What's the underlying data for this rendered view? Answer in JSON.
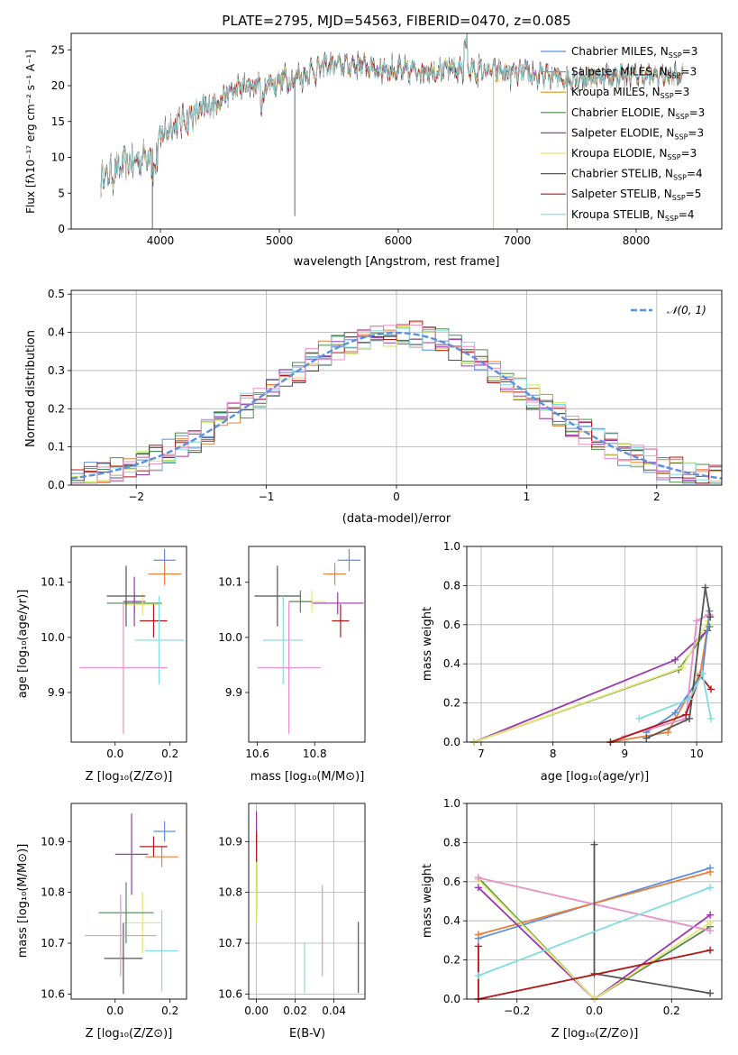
{
  "colors": [
    "#5b8fe0",
    "#e87f3a",
    "#e0901a",
    "#4f8a4f",
    "#9a38b0",
    "#e8e870",
    "#555555",
    "#b01818",
    "#80dce0"
  ],
  "colors_extra": {
    "pink": "#e890c8",
    "lime": "#c8e860",
    "olive": "#7a8a2a",
    "grid": "#b0b0b0",
    "gauss": "#5b8fe0"
  },
  "chart_data": [
    {
      "type": "line",
      "title": "PLATE=2795, MJD=54563, FIBERID=0470, z=0.085",
      "xlabel": "wavelength [Angstrom, rest frame]",
      "ylabel": "Flux [fλ10⁻¹⁷ erg cm⁻² s⁻¹ A⁻¹]",
      "xlim": [
        3250,
        8720
      ],
      "ylim": [
        0,
        27.3
      ],
      "xticks": [
        4000,
        5000,
        6000,
        7000,
        8000
      ],
      "yticks": [
        0,
        5,
        10,
        15,
        20,
        25
      ],
      "grid": false,
      "legend": "right",
      "series": [
        {
          "name": "Chabrier MILES, N",
          "sub": "SSP",
          "suffix": "=3"
        },
        {
          "name": "Salpeter MILES, N",
          "sub": "SSP",
          "suffix": "=3"
        },
        {
          "name": "Kroupa MILES, N",
          "sub": "SSP",
          "suffix": "=3"
        },
        {
          "name": "Chabrier ELODIE, N",
          "sub": "SSP",
          "suffix": "=3"
        },
        {
          "name": "Salpeter ELODIE, N",
          "sub": "SSP",
          "suffix": "=3"
        },
        {
          "name": "Kroupa ELODIE, N",
          "sub": "SSP",
          "suffix": "=3"
        },
        {
          "name": "Chabrier STELIB, N",
          "sub": "SSP",
          "suffix": "=4"
        },
        {
          "name": "Salpeter STELIB, N",
          "sub": "SSP",
          "suffix": "=5"
        },
        {
          "name": "Kroupa STELIB, N",
          "sub": "SSP",
          "suffix": "=4"
        }
      ],
      "continuum": {
        "x": [
          3500,
          3600,
          3700,
          3800,
          3900,
          4000,
          4100,
          4200,
          4300,
          4400,
          4500,
          4700,
          5000,
          5200,
          5400,
          5700,
          6000,
          6300,
          6600,
          6800,
          7000,
          7200,
          7400,
          7700,
          8000,
          8400
        ],
        "y": [
          7.2,
          8.0,
          9.0,
          9.5,
          10.5,
          12.8,
          14.5,
          15.3,
          16.0,
          17.0,
          18.3,
          19.8,
          20.5,
          21.5,
          22.8,
          22.8,
          22.0,
          22.2,
          22.3,
          22.0,
          21.7,
          21.5,
          21.0,
          21.3,
          21.5,
          21.3
        ]
      },
      "dips": [
        {
          "x": 3933,
          "y": 0
        },
        {
          "x": 5130,
          "y": 1.8
        },
        {
          "x": 6800,
          "y": 0
        },
        {
          "x": 7420,
          "y": 0
        }
      ]
    },
    {
      "type": "histogram",
      "xlabel": "(data-model)/error",
      "ylabel": "Normed distribution",
      "xlim": [
        -2.5,
        2.5
      ],
      "ylim": [
        0,
        0.51
      ],
      "xticks": [
        -2,
        -1,
        0,
        1,
        2
      ],
      "xtick_labels": [
        "−2",
        "−1",
        "0",
        "1",
        "2"
      ],
      "yticks": [
        0.0,
        0.1,
        0.2,
        0.3,
        0.4,
        0.5
      ],
      "grid": true,
      "legend": "top-right",
      "gaussian_label": "𝒩(0, 1)",
      "bin_width": 0.1,
      "bin_start": -2.5
    },
    {
      "type": "scatter",
      "xlabel": "Z [log₁₀(Z/Z⊙)]",
      "ylabel": "age  [log₁₀(age/yr)]",
      "xlim": [
        -0.16,
        0.26
      ],
      "ylim": [
        9.81,
        10.165
      ],
      "xticks": [
        0.0,
        0.2
      ],
      "yticks": [
        9.9,
        10.0,
        10.1
      ],
      "points": [
        {
          "x": 0.18,
          "y": 10.14,
          "xerr": 0.04,
          "yerr": 0.02,
          "c": 0
        },
        {
          "x": 0.18,
          "y": 10.115,
          "xerr": 0.06,
          "yerr": 0.02,
          "c": 1
        },
        {
          "x": 0.07,
          "y": 10.062,
          "xerr": 0.1,
          "yerr": 0.02,
          "c": 3
        },
        {
          "x": 0.07,
          "y": 10.065,
          "xerr": 0.04,
          "yerr": 0.045,
          "c": 4
        },
        {
          "x": 0.1,
          "y": 10.06,
          "xerr": 0.07,
          "yerr": 0.02,
          "c": 5
        },
        {
          "x": 0.04,
          "y": 10.075,
          "xerr": 0.07,
          "yerr": 0.055,
          "c": 6
        },
        {
          "x": 0.14,
          "y": 10.03,
          "xerr": 0.05,
          "yerr": 0.03,
          "c": 7
        },
        {
          "x": 0.16,
          "y": 9.995,
          "xerr": 0.09,
          "yerr": 0.08,
          "c": 8
        },
        {
          "x": 0.03,
          "y": 9.945,
          "xerr": 0.16,
          "yerr": 0.12,
          "c": "pink"
        }
      ]
    },
    {
      "type": "scatter",
      "xlabel": "mass [log₁₀(M/M⊙)]",
      "ylabel": "",
      "xlim": [
        10.57,
        10.975
      ],
      "ylim": [
        9.81,
        10.165
      ],
      "xticks": [
        10.6,
        10.8
      ],
      "yticks": [
        9.9,
        10.0,
        10.1
      ],
      "points": [
        {
          "x": 10.92,
          "y": 10.14,
          "xerr": 0.04,
          "yerr": 0.02,
          "c": 0
        },
        {
          "x": 10.87,
          "y": 10.115,
          "xerr": 0.04,
          "yerr": 0.02,
          "c": 1
        },
        {
          "x": 10.88,
          "y": 10.062,
          "xerr": 0.09,
          "yerr": 0.02,
          "c": 4
        },
        {
          "x": 10.79,
          "y": 10.065,
          "xerr": 0.05,
          "yerr": 0.02,
          "c": 5
        },
        {
          "x": 10.75,
          "y": 10.065,
          "xerr": 0.04,
          "yerr": 0.02,
          "c": 3
        },
        {
          "x": 10.67,
          "y": 10.075,
          "xerr": 0.08,
          "yerr": 0.055,
          "c": 6
        },
        {
          "x": 10.89,
          "y": 10.03,
          "xerr": 0.03,
          "yerr": 0.03,
          "c": 7
        },
        {
          "x": 10.69,
          "y": 9.995,
          "xerr": 0.07,
          "yerr": 0.08,
          "c": 8
        },
        {
          "x": 10.71,
          "y": 9.945,
          "xerr": 0.11,
          "yerr": 0.12,
          "c": "pink"
        }
      ]
    },
    {
      "type": "line",
      "xlabel": "age  [log₁₀(age/yr)]",
      "ylabel": "mass weight",
      "xlim": [
        6.8,
        10.35
      ],
      "ylim": [
        0,
        1.0
      ],
      "xticks": [
        7,
        8,
        9,
        10
      ],
      "yticks": [
        0.0,
        0.2,
        0.4,
        0.6,
        0.8,
        1.0
      ],
      "grid": true,
      "series": [
        {
          "x": [
            6.9,
            9.75,
            10.18
          ],
          "y": [
            0.0,
            0.37,
            0.59
          ],
          "c": 3
        },
        {
          "x": [
            6.9,
            9.7,
            10.15
          ],
          "y": [
            0.0,
            0.42,
            0.57
          ],
          "c": 4
        },
        {
          "x": [
            6.9,
            9.8,
            10.16
          ],
          "y": [
            0.0,
            0.38,
            0.62
          ],
          "c": 5
        },
        {
          "x": [
            8.8,
            9.6,
            10.05,
            10.18
          ],
          "y": [
            0.0,
            0.05,
            0.35,
            0.65
          ],
          "c": 1
        },
        {
          "x": [
            9.3,
            9.7,
            10.08,
            10.18
          ],
          "y": [
            0.05,
            0.15,
            0.35,
            0.67
          ],
          "c": 0
        },
        {
          "x": [
            9.0,
            9.85,
            10.0,
            10.16
          ],
          "y": [
            0.03,
            0.12,
            0.62,
            0.65
          ],
          "c": "pink"
        },
        {
          "x": [
            9.3,
            9.9,
            10.12,
            10.19
          ],
          "y": [
            0.02,
            0.12,
            0.79,
            0.64
          ],
          "c": 6
        },
        {
          "x": [
            8.8,
            9.85,
            10.05,
            10.2
          ],
          "y": [
            0.0,
            0.14,
            0.34,
            0.27
          ],
          "c": 7
        },
        {
          "x": [
            9.2,
            9.9,
            10.08,
            10.2
          ],
          "y": [
            0.12,
            0.22,
            0.35,
            0.12
          ],
          "c": 8
        }
      ]
    },
    {
      "type": "scatter",
      "xlabel": "Z [log₁₀(Z/Z⊙)]",
      "ylabel": "mass [log₁₀(M/M⊙)]",
      "xlim": [
        -0.16,
        0.26
      ],
      "ylim": [
        10.59,
        10.975
      ],
      "xticks": [
        0.0,
        0.2
      ],
      "yticks": [
        10.6,
        10.7,
        10.8,
        10.9
      ],
      "points": [
        {
          "x": 0.18,
          "y": 10.92,
          "xerr": 0.04,
          "yerr": 0.02,
          "c": 0
        },
        {
          "x": 0.17,
          "y": 10.87,
          "xerr": 0.06,
          "yerr": 0.02,
          "c": 1
        },
        {
          "x": 0.14,
          "y": 10.89,
          "xerr": 0.05,
          "yerr": 0.02,
          "c": 7
        },
        {
          "x": 0.06,
          "y": 10.875,
          "xerr": 0.06,
          "yerr": 0.08,
          "c": 4
        },
        {
          "x": 0.1,
          "y": 10.74,
          "xerr": 0.07,
          "yerr": 0.06,
          "c": 5
        },
        {
          "x": 0.04,
          "y": 10.76,
          "xerr": 0.1,
          "yerr": 0.06,
          "c": 3
        },
        {
          "x": 0.03,
          "y": 10.67,
          "xerr": 0.07,
          "yerr": 0.07,
          "c": 6
        },
        {
          "x": 0.02,
          "y": 10.715,
          "xerr": 0.13,
          "yerr": 0.08,
          "c": "pink"
        },
        {
          "x": 0.17,
          "y": 10.685,
          "xerr": 0.06,
          "yerr": 0.08,
          "c": 8
        }
      ]
    },
    {
      "type": "scatter",
      "xlabel": "E(B-V)",
      "ylabel": "",
      "xlim": [
        -0.004,
        0.056
      ],
      "ylim": [
        10.59,
        10.975
      ],
      "xticks": [
        0.0,
        0.02,
        0.04
      ],
      "xtick_labels": [
        "0.00",
        "0.02",
        "0.04"
      ],
      "yticks": [
        10.6,
        10.7,
        10.8,
        10.9
      ],
      "grid": true,
      "points": [
        {
          "x": 0.0,
          "y": 10.92,
          "xerr": 0,
          "yerr": 0.03,
          "c": 0
        },
        {
          "x": 0.0,
          "y": 10.88,
          "xerr": 0,
          "yerr": 0.08,
          "c": 4
        },
        {
          "x": 0.0,
          "y": 10.84,
          "xerr": 0,
          "yerr": 0.08,
          "c": 7
        },
        {
          "x": 0.0,
          "y": 10.8,
          "xerr": 0,
          "yerr": 0.06,
          "c": "lime"
        },
        {
          "x": 0.0248,
          "y": 10.652,
          "xerr": 0,
          "yerr": 0.05,
          "c": 8
        },
        {
          "x": 0.034,
          "y": 10.725,
          "xerr": 0,
          "yerr": 0.09,
          "c": "pink"
        },
        {
          "x": 0.0526,
          "y": 10.672,
          "xerr": 0,
          "yerr": 0.07,
          "c": 6
        }
      ]
    },
    {
      "type": "line",
      "xlabel": "Z [log₁₀(Z/Z⊙)]",
      "ylabel": "mass weight",
      "xlim": [
        -0.33,
        0.33
      ],
      "ylim": [
        0,
        1.0
      ],
      "xticks": [
        -0.2,
        0.0,
        0.2
      ],
      "xtick_labels": [
        "−0.2",
        "0.0",
        "0.2"
      ],
      "yticks": [
        0.0,
        0.2,
        0.4,
        0.6,
        0.8,
        1.0
      ],
      "grid": true,
      "series": [
        {
          "x": [
            -0.3,
            0.3
          ],
          "y": [
            0.31,
            0.67
          ],
          "c": 0
        },
        {
          "x": [
            -0.3,
            0.3
          ],
          "y": [
            0.33,
            0.65
          ],
          "c": 1
        },
        {
          "x": [
            -0.3,
            0.0,
            0.3
          ],
          "y": [
            0.62,
            0.0,
            0.37
          ],
          "c": 3
        },
        {
          "x": [
            -0.3,
            0.0,
            0.3
          ],
          "y": [
            0.57,
            0.0,
            0.43
          ],
          "c": 4
        },
        {
          "x": [
            -0.3,
            0.0,
            0.3
          ],
          "y": [
            0.61,
            0.0,
            0.39
          ],
          "c": 5
        },
        {
          "x": [
            -0.3,
            0.3
          ],
          "y": [
            0.62,
            0.35
          ],
          "c": "pink"
        },
        {
          "x": [
            0.0,
            0.0,
            0.3
          ],
          "y": [
            0.79,
            0.13,
            0.03
          ],
          "c": 6
        },
        {
          "x": [
            -0.3,
            -0.3,
            0.3
          ],
          "y": [
            0.27,
            0.0,
            0.25
          ],
          "c": 7
        },
        {
          "x": [
            -0.3,
            0.3
          ],
          "y": [
            0.12,
            0.57
          ],
          "c": 8
        }
      ]
    }
  ]
}
